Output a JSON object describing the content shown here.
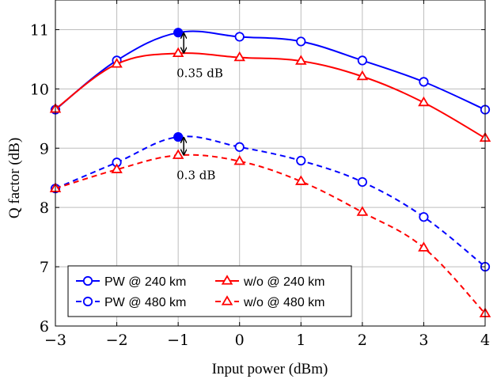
{
  "chart_data": {
    "type": "line",
    "xlabel": "Input power (dBm)",
    "ylabel": "Q factor (dB)",
    "xlim": [
      -3,
      4
    ],
    "ylim": [
      6,
      11.5
    ],
    "xticks": [
      -3,
      -2,
      -1,
      0,
      1,
      2,
      3,
      4
    ],
    "yticks": [
      6,
      7,
      8,
      9,
      10,
      11
    ],
    "xtick_labels": [
      "−3",
      "−2",
      "−1",
      "0",
      "1",
      "2",
      "3",
      "4"
    ],
    "ytick_labels": [
      "6",
      "7",
      "8",
      "9",
      "10",
      "11"
    ],
    "grid": true,
    "legend_position": "bottom-left",
    "series": [
      {
        "name": "PW @ 240 km",
        "color": "#0000ff",
        "dash": "solid",
        "marker": "circle",
        "x": [
          -3,
          -2,
          -1,
          0,
          1,
          2,
          3,
          4
        ],
        "y": [
          9.65,
          10.48,
          10.95,
          10.88,
          10.8,
          10.48,
          10.12,
          9.65
        ]
      },
      {
        "name": "w/o @ 240 km",
        "color": "#ff0000",
        "dash": "solid",
        "marker": "triangle",
        "x": [
          -3,
          -2,
          -1,
          0,
          1,
          2,
          3,
          4
        ],
        "y": [
          9.66,
          10.42,
          10.6,
          10.53,
          10.47,
          10.21,
          9.77,
          9.17
        ]
      },
      {
        "name": "PW @ 480 km",
        "color": "#0000ff",
        "dash": "dashed",
        "marker": "circle",
        "x": [
          -3,
          -2,
          -1,
          0,
          1,
          2,
          3,
          4
        ],
        "y": [
          8.32,
          8.76,
          9.19,
          9.02,
          8.79,
          8.43,
          7.84,
          7.0
        ]
      },
      {
        "name": "w/o @ 480 km",
        "color": "#ff0000",
        "dash": "dashed",
        "marker": "triangle",
        "x": [
          -3,
          -2,
          -1,
          0,
          1,
          2,
          3,
          4
        ],
        "y": [
          8.32,
          8.64,
          8.88,
          8.78,
          8.44,
          7.92,
          7.32,
          6.21
        ]
      }
    ],
    "annotations": [
      {
        "text": "0.35 dB",
        "x": -1,
        "y_from": 10.95,
        "y_to": 10.6
      },
      {
        "text": "0.3 dB",
        "x": -1,
        "y_from": 9.19,
        "y_to": 8.88
      }
    ]
  }
}
